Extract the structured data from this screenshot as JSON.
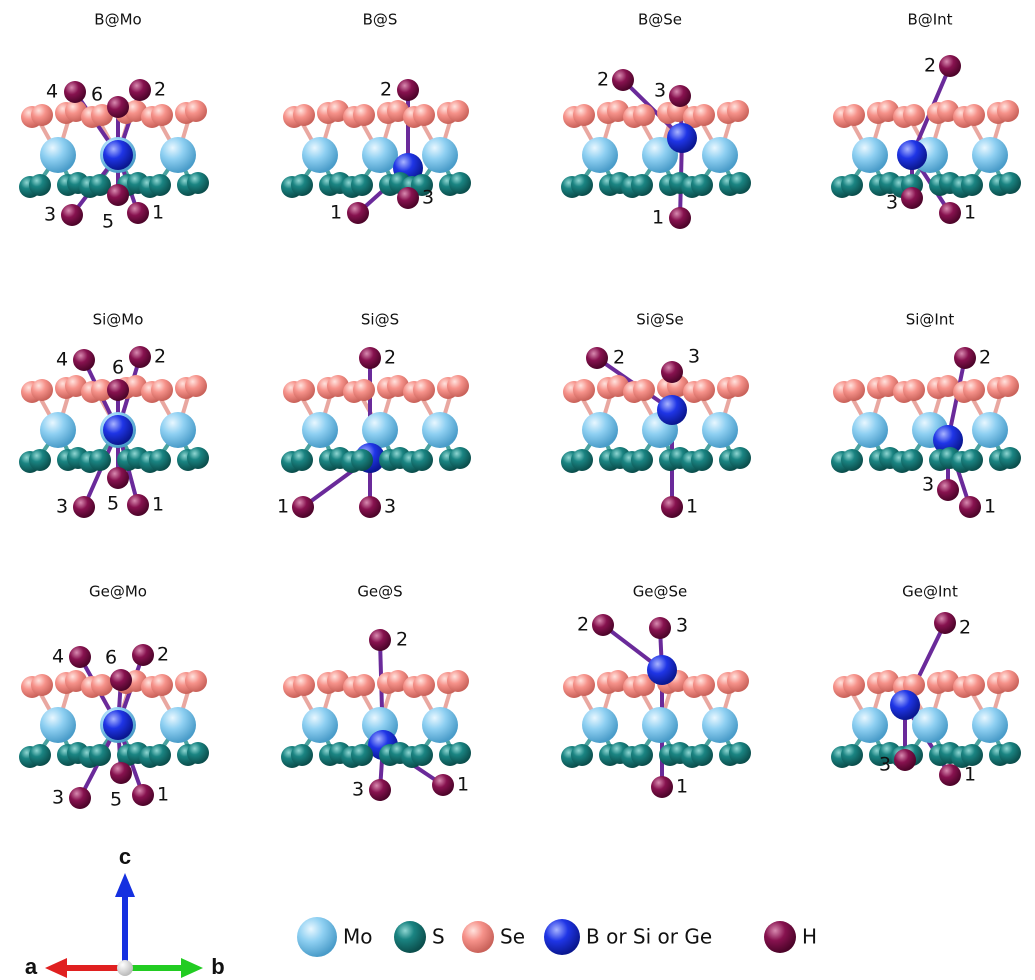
{
  "panels": [
    {
      "title": "B@Mo",
      "labels": [
        "4",
        "6",
        "2",
        "3",
        "5",
        "1"
      ]
    },
    {
      "title": "B@S",
      "labels": [
        "2",
        "1",
        "3"
      ]
    },
    {
      "title": "B@Se",
      "labels": [
        "2",
        "3",
        "1"
      ]
    },
    {
      "title": "B@Int",
      "labels": [
        "2",
        "3",
        "1"
      ]
    },
    {
      "title": "Si@Mo",
      "labels": [
        "4",
        "6",
        "2",
        "3",
        "5",
        "1"
      ]
    },
    {
      "title": "Si@S",
      "labels": [
        "2",
        "1",
        "3"
      ]
    },
    {
      "title": "Si@Se",
      "labels": [
        "2",
        "3",
        "1"
      ]
    },
    {
      "title": "Si@Int",
      "labels": [
        "2",
        "3",
        "1"
      ]
    },
    {
      "title": "Ge@Mo",
      "labels": [
        "4",
        "6",
        "2",
        "3",
        "5",
        "1"
      ]
    },
    {
      "title": "Ge@S",
      "labels": [
        "2",
        "3",
        "1"
      ]
    },
    {
      "title": "Ge@Se",
      "labels": [
        "2",
        "3",
        "1"
      ]
    },
    {
      "title": "Ge@Int",
      "labels": [
        "2",
        "3",
        "1"
      ]
    }
  ],
  "legend": [
    "Mo",
    "S",
    "Se",
    "B or Si or Ge",
    "H"
  ],
  "axes": {
    "a": "a",
    "b": "b",
    "c": "c"
  }
}
